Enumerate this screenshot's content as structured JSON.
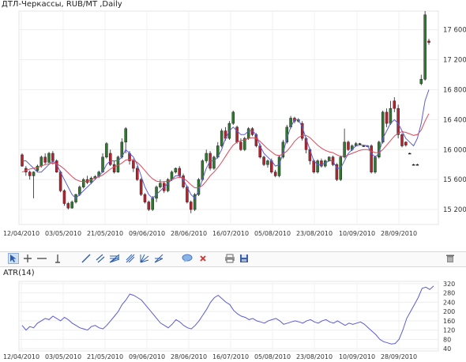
{
  "header": {
    "title": "ДТЛ-Черкассы,  RUB/MT ,Daily"
  },
  "toolbar": {
    "tools": [
      {
        "name": "cursor-icon"
      },
      {
        "name": "crosshair-icon"
      },
      {
        "name": "horizontal-line-icon"
      },
      {
        "name": "vertical-line-icon"
      },
      {
        "name": "trend-line-icon"
      },
      {
        "name": "channel-icon"
      },
      {
        "name": "fibonacci-fan-icon"
      },
      {
        "name": "pitchfork-icon"
      },
      {
        "name": "gann-fan-icon"
      },
      {
        "name": "text-bubble-icon"
      },
      {
        "name": "delete-drawings-icon"
      },
      {
        "name": "print-icon"
      },
      {
        "name": "save-icon"
      },
      {
        "name": "trash-icon"
      }
    ]
  },
  "colors": {
    "up": "#2f7a2f",
    "down": "#b8232f",
    "doji": "#222222",
    "ma_fast": "#5b5bd6",
    "ma_slow": "#d94b5b",
    "atr": "#5b5bd6"
  },
  "chart_data": [
    {
      "type": "candlestick",
      "title": "ДТЛ-Черкассы,  RUB/MT ,Daily",
      "x_tick_labels": [
        "12/04/2010",
        "03/05/2010",
        "21/05/2010",
        "09/06/2010",
        "28/06/2010",
        "16/07/2010",
        "05/08/2010",
        "23/08/2010",
        "10/09/2010",
        "28/09/2010"
      ],
      "y_ticks": [
        15200,
        15600,
        16000,
        16400,
        16800,
        17200,
        17600
      ],
      "y_tick_labels": [
        "15 200",
        "15 600",
        "16 000",
        "16 400",
        "16 800",
        "17 200",
        "17 600"
      ],
      "ylim": [
        15000,
        17850
      ],
      "grid": true,
      "candles": [
        [
          15930,
          15780,
          15950,
          15770
        ],
        [
          15750,
          15700,
          15780,
          15650
        ],
        [
          15700,
          15650,
          15720,
          15600
        ],
        [
          15650,
          15700,
          15710,
          15350
        ],
        [
          15720,
          15780,
          15800,
          15700
        ],
        [
          15780,
          15900,
          15920,
          15760
        ],
        [
          15900,
          15830,
          15950,
          15800
        ],
        [
          15830,
          15950,
          15970,
          15820
        ],
        [
          15950,
          15850,
          15980,
          15800
        ],
        [
          15850,
          15700,
          15870,
          15690
        ],
        [
          15700,
          15450,
          15720,
          15430
        ],
        [
          15450,
          15280,
          15470,
          15250
        ],
        [
          15280,
          15220,
          15300,
          15200
        ],
        [
          15220,
          15300,
          15320,
          15210
        ],
        [
          15300,
          15400,
          15410,
          15280
        ],
        [
          15400,
          15500,
          15520,
          15380
        ],
        [
          15500,
          15600,
          15620,
          15480
        ],
        [
          15600,
          15560,
          15650,
          15540
        ],
        [
          15560,
          15620,
          15640,
          15540
        ],
        [
          15620,
          15640,
          15660,
          15600
        ],
        [
          15640,
          15700,
          15720,
          15620
        ],
        [
          15700,
          15900,
          15950,
          15690
        ],
        [
          15900,
          16080,
          16100,
          15880
        ],
        [
          15950,
          15800,
          16000,
          15780
        ],
        [
          15800,
          15700,
          15850,
          15680
        ],
        [
          15700,
          15900,
          15920,
          15690
        ],
        [
          15900,
          16100,
          16150,
          15880
        ],
        [
          16100,
          16280,
          16300,
          15950
        ],
        [
          15950,
          15850,
          15980,
          15800
        ],
        [
          15850,
          15750,
          15880,
          15700
        ],
        [
          15750,
          15600,
          15780,
          15580
        ],
        [
          15600,
          15400,
          15620,
          15380
        ],
        [
          15400,
          15300,
          15420,
          15280
        ],
        [
          15300,
          15200,
          15320,
          15180
        ],
        [
          15200,
          15350,
          15380,
          15180
        ],
        [
          15350,
          15500,
          15520,
          15300
        ],
        [
          15500,
          15550,
          15600,
          15480
        ],
        [
          15550,
          15450,
          15580,
          15420
        ],
        [
          15450,
          15600,
          15620,
          15430
        ],
        [
          15600,
          15700,
          15720,
          15580
        ],
        [
          15700,
          15750,
          15760,
          15680
        ],
        [
          15750,
          15650,
          15780,
          15620
        ],
        [
          15650,
          15500,
          15680,
          15480
        ],
        [
          15500,
          15300,
          15520,
          15280
        ],
        [
          15300,
          15200,
          15320,
          15150
        ],
        [
          15200,
          15400,
          15420,
          15180
        ],
        [
          15400,
          15600,
          15620,
          15380
        ],
        [
          15600,
          15850,
          15870,
          15580
        ],
        [
          15850,
          15950,
          16000,
          15820
        ],
        [
          15950,
          15750,
          15980,
          15720
        ],
        [
          15750,
          15900,
          15920,
          15730
        ],
        [
          15900,
          16050,
          16100,
          15880
        ],
        [
          16050,
          16250,
          16280,
          16030
        ],
        [
          16250,
          16150,
          16300,
          16120
        ],
        [
          16150,
          16350,
          16380,
          16130
        ],
        [
          16350,
          16500,
          16520,
          16330
        ],
        [
          16300,
          16100,
          16320,
          16080
        ],
        [
          16100,
          16000,
          16150,
          15980
        ],
        [
          16000,
          16150,
          16170,
          15980
        ],
        [
          16150,
          16280,
          16300,
          16130
        ],
        [
          16280,
          16200,
          16300,
          16180
        ],
        [
          16200,
          16050,
          16220,
          16030
        ],
        [
          16050,
          15900,
          16080,
          15880
        ],
        [
          15900,
          15800,
          15920,
          15780
        ],
        [
          15800,
          15850,
          15870,
          15760
        ],
        [
          15850,
          15700,
          15880,
          15680
        ],
        [
          15700,
          15650,
          15730,
          15630
        ],
        [
          15650,
          15900,
          15920,
          15630
        ],
        [
          15900,
          16100,
          16130,
          15880
        ],
        [
          16100,
          16300,
          16330,
          16080
        ],
        [
          16300,
          16420,
          16450,
          16280
        ],
        [
          16420,
          16380,
          16440,
          16350
        ],
        [
          16380,
          16400,
          16420,
          16360
        ],
        [
          16350,
          16150,
          16380,
          16120
        ],
        [
          16150,
          16000,
          16170,
          15950
        ],
        [
          16000,
          15850,
          16020,
          15800
        ],
        [
          15850,
          15700,
          15870,
          15680
        ],
        [
          15700,
          15850,
          15870,
          15680
        ],
        [
          15850,
          15780,
          15880,
          15760
        ],
        [
          15780,
          15850,
          15870,
          15760
        ],
        [
          15850,
          15900,
          15910,
          15840
        ],
        [
          15900,
          15800,
          15920,
          15780
        ],
        [
          15800,
          15600,
          15820,
          15580
        ],
        [
          15600,
          15900,
          15920,
          15580
        ],
        [
          15900,
          16100,
          16280,
          15880
        ],
        [
          16100,
          16000,
          16120,
          15980
        ],
        [
          16000,
          16050,
          16070,
          15980
        ],
        [
          16050,
          16080,
          16100,
          16040
        ],
        [
          16080,
          16080,
          16090,
          16070
        ],
        [
          16050,
          16050,
          16060,
          16040
        ],
        [
          16050,
          16050,
          16060,
          16040
        ],
        [
          16050,
          15700,
          16070,
          15680
        ],
        [
          15700,
          15900,
          15920,
          15680
        ],
        [
          15900,
          16100,
          16120,
          15880
        ],
        [
          16100,
          16500,
          16520,
          16080
        ],
        [
          16500,
          16350,
          16550,
          16300
        ],
        [
          16350,
          16550,
          16650,
          16330
        ],
        [
          16650,
          16550,
          16700,
          16500
        ],
        [
          16550,
          16200,
          16600,
          16150
        ],
        [
          16200,
          16050,
          16220,
          16030
        ],
        [
          16100,
          16060,
          16110,
          16040
        ],
        [
          15950,
          15950,
          15960,
          15940
        ],
        [
          15800,
          15800,
          15810,
          15790
        ],
        [
          15800,
          15800,
          15810,
          15790
        ],
        [
          16880,
          16940,
          17000,
          16860
        ],
        [
          16940,
          17800,
          17850,
          16920
        ],
        [
          17450,
          17430,
          17480,
          17400
        ]
      ],
      "series": [
        {
          "name": "",
          "color": "ma_fast",
          "values": [
            15850,
            15850,
            15800,
            15750,
            15700,
            15700,
            15750,
            15800,
            15850,
            15800,
            15700,
            15600,
            15500,
            15400,
            15350,
            15400,
            15450,
            15500,
            15550,
            15600,
            15650,
            15700,
            15800,
            15850,
            15850,
            15850,
            15900,
            16000,
            15950,
            15900,
            15800,
            15650,
            15500,
            15400,
            15350,
            15400,
            15450,
            15500,
            15550,
            15600,
            15650,
            15650,
            15600,
            15500,
            15400,
            15350,
            15450,
            15600,
            15750,
            15850,
            15850,
            15900,
            16000,
            16150,
            16250,
            16300,
            16250,
            16200,
            16200,
            16250,
            16250,
            16200,
            16050,
            15950,
            15900,
            15850,
            15780,
            15800,
            15950,
            16150,
            16300,
            16400,
            16400,
            16300,
            16150,
            16000,
            15850,
            15800,
            15800,
            15820,
            15850,
            15850,
            15750,
            15750,
            15850,
            15950,
            16000,
            16050,
            16060,
            16060,
            16050,
            15950,
            15900,
            15950,
            16150,
            16250,
            16350,
            16400,
            16350,
            16250,
            16150,
            16100,
            16050,
            16150,
            16350,
            16650,
            16800
          ]
        },
        {
          "name": "",
          "color": "ma_slow",
          "values": [
            15700,
            15720,
            15740,
            15750,
            15760,
            15780,
            15800,
            15810,
            15820,
            15810,
            15780,
            15740,
            15690,
            15640,
            15600,
            15580,
            15570,
            15580,
            15600,
            15620,
            15640,
            15660,
            15700,
            15740,
            15770,
            15790,
            15820,
            15860,
            15870,
            15860,
            15830,
            15780,
            15720,
            15660,
            15610,
            15580,
            15570,
            15570,
            15580,
            15600,
            15620,
            15630,
            15620,
            15580,
            15530,
            15490,
            15490,
            15520,
            15580,
            15650,
            15700,
            15760,
            15830,
            15910,
            15990,
            16060,
            16100,
            16120,
            16130,
            16150,
            16160,
            16150,
            16110,
            16060,
            16010,
            15970,
            15930,
            15920,
            15940,
            15980,
            16040,
            16110,
            16160,
            16190,
            16190,
            16160,
            16110,
            16060,
            16020,
            15990,
            15970,
            15960,
            15930,
            15910,
            15910,
            15930,
            15950,
            15970,
            15990,
            16000,
            16000,
            15980,
            15960,
            15960,
            16000,
            16060,
            16120,
            16180,
            16220,
            16240,
            16230,
            16210,
            16190,
            16200,
            16260,
            16380,
            16480
          ]
        }
      ]
    },
    {
      "type": "line",
      "title": "ATR(14)",
      "x_tick_labels": [
        "12/04/2010",
        "03/05/2010",
        "21/05/2010",
        "09/06/2010",
        "28/06/2010",
        "16/07/2010",
        "05/08/2010",
        "23/08/2010",
        "10/09/2010",
        "28/09/2010"
      ],
      "y_ticks": [
        40,
        80,
        120,
        160,
        200,
        240,
        280,
        320
      ],
      "ylim": [
        30,
        330
      ],
      "grid": true,
      "series": [
        {
          "name": "ATR(14)",
          "color": "atr",
          "values": [
            140,
            120,
            135,
            130,
            150,
            160,
            170,
            165,
            180,
            170,
            160,
            175,
            165,
            150,
            140,
            130,
            125,
            120,
            135,
            140,
            130,
            125,
            140,
            160,
            180,
            200,
            230,
            250,
            275,
            270,
            260,
            250,
            230,
            210,
            190,
            170,
            150,
            140,
            130,
            145,
            165,
            155,
            140,
            130,
            125,
            140,
            160,
            185,
            210,
            240,
            260,
            270,
            255,
            240,
            230,
            205,
            190,
            180,
            175,
            165,
            170,
            160,
            155,
            150,
            160,
            165,
            170,
            160,
            145,
            150,
            155,
            160,
            155,
            150,
            160,
            165,
            155,
            150,
            160,
            165,
            155,
            150,
            160,
            150,
            140,
            150,
            145,
            150,
            155,
            145,
            130,
            115,
            100,
            80,
            70,
            65,
            60,
            62,
            80,
            120,
            170,
            200,
            230,
            260,
            300,
            305,
            295,
            310
          ]
        }
      ]
    }
  ]
}
